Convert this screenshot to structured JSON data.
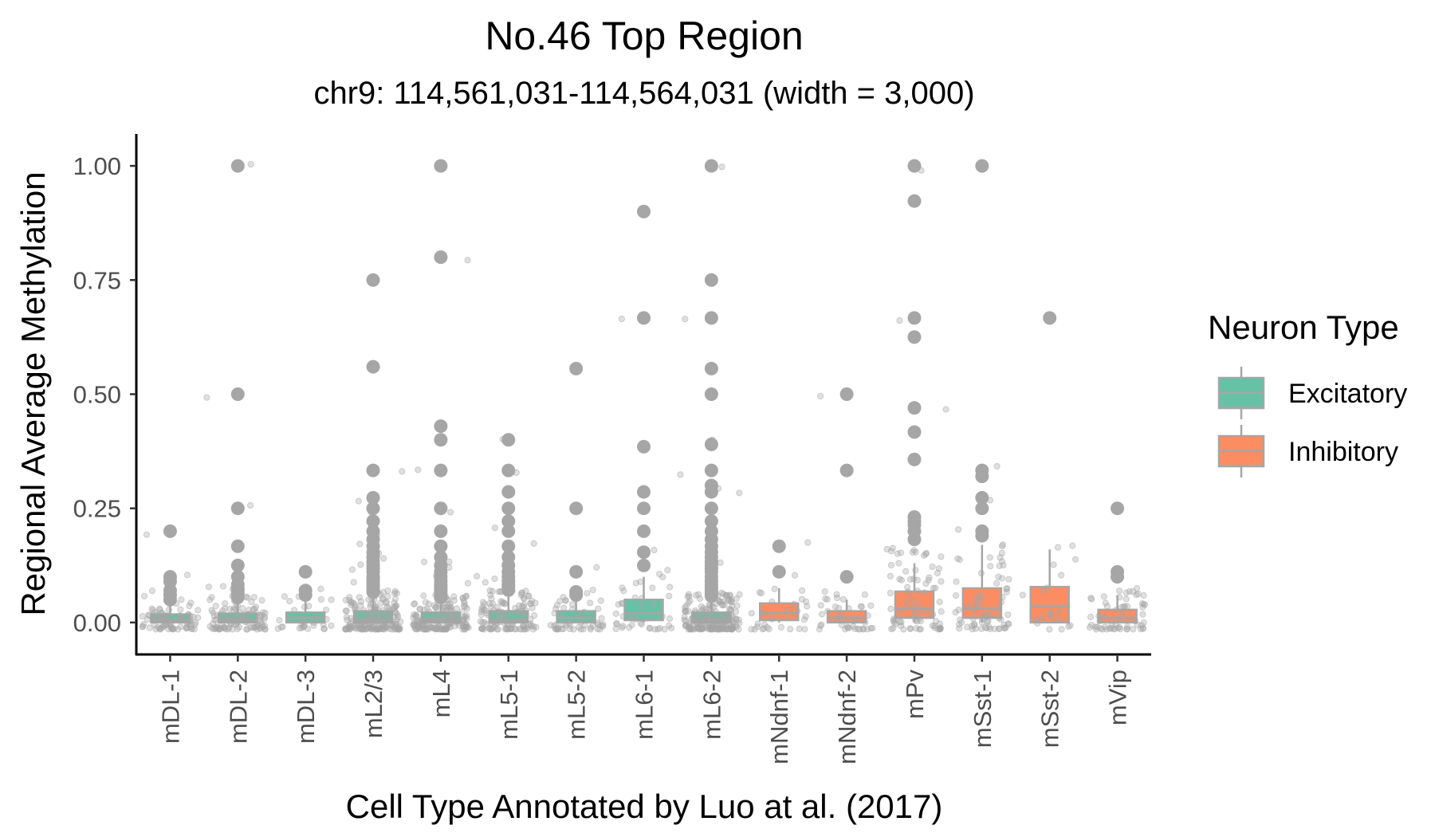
{
  "colors": {
    "excitatory": "#66c2a5",
    "inhibitory": "#fc8d62",
    "points": "#a6a6a6",
    "box_stroke": "#a6a6a6",
    "axis": "#000000"
  },
  "chart_data": {
    "type": "boxplot",
    "title": "No.46 Top Region",
    "subtitle": "chr9: 114,561,031-114,564,031 (width = 3,000)",
    "xlabel": "Cell Type Annotated by Luo at al. (2017)",
    "ylabel": "Regional Average Methylation",
    "ylim": [
      -0.07,
      1.07
    ],
    "yticks": [
      0.0,
      0.25,
      0.5,
      0.75,
      1.0
    ],
    "ytick_labels": [
      "0.00",
      "0.25",
      "0.50",
      "0.75",
      "1.00"
    ],
    "grid": false,
    "legend": {
      "title": "Neuron Type",
      "position": "right",
      "entries": [
        {
          "label": "Excitatory",
          "type": "Excitatory"
        },
        {
          "label": "Inhibitory",
          "type": "Inhibitory"
        }
      ]
    },
    "categories": [
      {
        "name": "mDL-1",
        "type": "Excitatory",
        "q1": 0.0,
        "median": 0.005,
        "q3": 0.018,
        "whisker_low": 0.0,
        "whisker_high": 0.04,
        "n_jitter": 80,
        "outliers": [
          0.2,
          0.1,
          0.09,
          0.07,
          0.06,
          0.05
        ]
      },
      {
        "name": "mDL-2",
        "type": "Excitatory",
        "q1": 0.0,
        "median": 0.005,
        "q3": 0.02,
        "whisker_low": 0.0,
        "whisker_high": 0.05,
        "n_jitter": 100,
        "outliers": [
          1.0,
          0.5,
          0.25,
          0.167,
          0.125,
          0.1,
          0.083,
          0.075,
          0.07,
          0.065,
          0.06,
          0.055
        ]
      },
      {
        "name": "mDL-3",
        "type": "Excitatory",
        "q1": 0.0,
        "median": 0.01,
        "q3": 0.022,
        "whisker_low": 0.0,
        "whisker_high": 0.05,
        "n_jitter": 30,
        "outliers": [
          0.111,
          0.07,
          0.06
        ]
      },
      {
        "name": "mL2/3",
        "type": "Excitatory",
        "q1": 0.0,
        "median": 0.005,
        "q3": 0.025,
        "whisker_low": 0.0,
        "whisker_high": 0.06,
        "n_jitter": 170,
        "outliers": [
          0.75,
          0.56,
          0.333,
          0.273,
          0.25,
          0.222,
          0.2,
          0.182,
          0.167,
          0.154,
          0.143,
          0.133,
          0.125,
          0.118,
          0.111,
          0.1,
          0.095,
          0.09,
          0.083,
          0.077,
          0.071,
          0.067
        ]
      },
      {
        "name": "mL4",
        "type": "Excitatory",
        "q1": 0.0,
        "median": 0.005,
        "q3": 0.022,
        "whisker_low": 0.0,
        "whisker_high": 0.05,
        "n_jitter": 160,
        "outliers": [
          1.0,
          0.8,
          0.43,
          0.4,
          0.333,
          0.25,
          0.2,
          0.167,
          0.143,
          0.125,
          0.111,
          0.1,
          0.091,
          0.083,
          0.077,
          0.071,
          0.067,
          0.06,
          0.055
        ]
      },
      {
        "name": "mL5-1",
        "type": "Excitatory",
        "q1": 0.0,
        "median": 0.005,
        "q3": 0.025,
        "whisker_low": 0.0,
        "whisker_high": 0.06,
        "n_jitter": 120,
        "outliers": [
          0.4,
          0.333,
          0.286,
          0.25,
          0.222,
          0.2,
          0.167,
          0.143,
          0.125,
          0.111,
          0.1,
          0.091,
          0.083,
          0.077,
          0.071
        ]
      },
      {
        "name": "mL5-2",
        "type": "Excitatory",
        "q1": 0.0,
        "median": 0.01,
        "q3": 0.025,
        "whisker_low": 0.0,
        "whisker_high": 0.05,
        "n_jitter": 50,
        "outliers": [
          0.556,
          0.25,
          0.111,
          0.067,
          0.06
        ]
      },
      {
        "name": "mL6-1",
        "type": "Excitatory",
        "q1": 0.005,
        "median": 0.02,
        "q3": 0.05,
        "whisker_low": 0.0,
        "whisker_high": 0.1,
        "n_jitter": 40,
        "outliers": [
          0.9,
          0.667,
          0.385,
          0.286,
          0.25,
          0.2,
          0.154,
          0.125
        ]
      },
      {
        "name": "mL6-2",
        "type": "Excitatory",
        "q1": 0.0,
        "median": 0.005,
        "q3": 0.022,
        "whisker_low": 0.0,
        "whisker_high": 0.05,
        "n_jitter": 190,
        "outliers": [
          1.0,
          0.75,
          0.667,
          0.556,
          0.5,
          0.39,
          0.333,
          0.3,
          0.286,
          0.25,
          0.222,
          0.2,
          0.182,
          0.167,
          0.154,
          0.143,
          0.133,
          0.125,
          0.118,
          0.111,
          0.1,
          0.091,
          0.083,
          0.077,
          0.071,
          0.067,
          0.062,
          0.058
        ]
      },
      {
        "name": "mNdnf-1",
        "type": "Inhibitory",
        "q1": 0.005,
        "median": 0.02,
        "q3": 0.042,
        "whisker_low": 0.0,
        "whisker_high": 0.075,
        "n_jitter": 30,
        "outliers": [
          0.167,
          0.111
        ]
      },
      {
        "name": "mNdnf-2",
        "type": "Inhibitory",
        "q1": 0.0,
        "median": 0.01,
        "q3": 0.025,
        "whisker_low": 0.0,
        "whisker_high": 0.05,
        "n_jitter": 40,
        "outliers": [
          0.5,
          0.333,
          0.1
        ]
      },
      {
        "name": "mPv",
        "type": "Inhibitory",
        "q1": 0.01,
        "median": 0.03,
        "q3": 0.068,
        "whisker_low": 0.0,
        "whisker_high": 0.13,
        "n_jitter": 80,
        "outliers": [
          1.0,
          0.923,
          0.667,
          0.625,
          0.47,
          0.417,
          0.357,
          0.231,
          0.222,
          0.214,
          0.2,
          0.182
        ]
      },
      {
        "name": "mSst-1",
        "type": "Inhibitory",
        "q1": 0.01,
        "median": 0.03,
        "q3": 0.075,
        "whisker_low": 0.0,
        "whisker_high": 0.17,
        "n_jitter": 70,
        "outliers": [
          1.0,
          0.333,
          0.32,
          0.273,
          0.25,
          0.2,
          0.19
        ]
      },
      {
        "name": "mSst-2",
        "type": "Inhibitory",
        "q1": 0.0,
        "median": 0.035,
        "q3": 0.078,
        "whisker_low": 0.0,
        "whisker_high": 0.16,
        "n_jitter": 20,
        "outliers": [
          0.667
        ]
      },
      {
        "name": "mVip",
        "type": "Inhibitory",
        "q1": 0.0,
        "median": 0.01,
        "q3": 0.028,
        "whisker_low": 0.0,
        "whisker_high": 0.06,
        "n_jitter": 60,
        "outliers": [
          0.25,
          0.111,
          0.1
        ]
      }
    ]
  }
}
